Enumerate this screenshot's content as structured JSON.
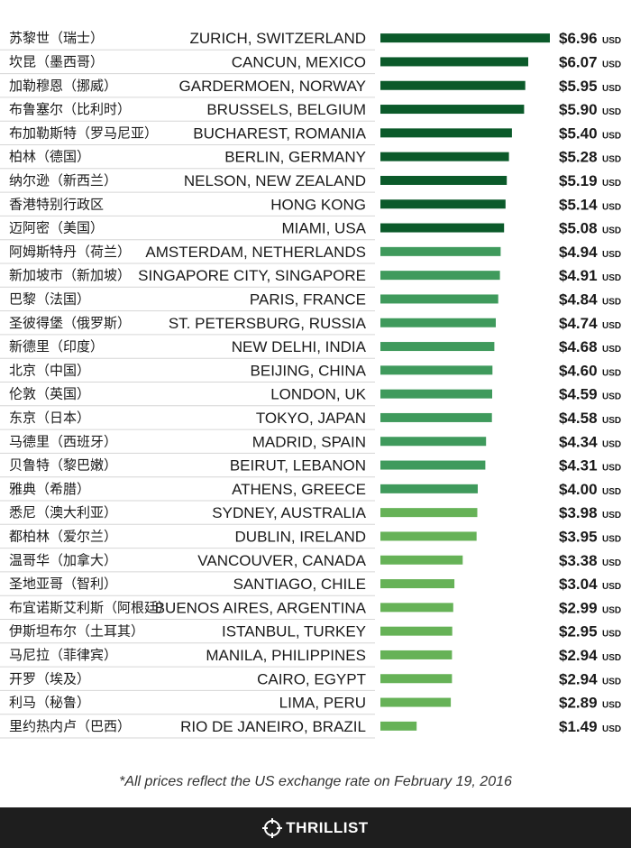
{
  "chart_data": {
    "type": "bar",
    "orientation": "horizontal",
    "unit": "USD",
    "currency_symbol": "$",
    "rows": [
      {
        "cn": "苏黎世（瑞士）",
        "city": "ZURICH, SWITZERLAND",
        "value": 6.96,
        "label": "$6.96"
      },
      {
        "cn": "坎昆（墨西哥）",
        "city": "CANCUN, MEXICO",
        "value": 6.07,
        "label": "$6.07"
      },
      {
        "cn": "加勒穆恩（挪威）",
        "city": "GARDERMOEN, NORWAY",
        "value": 5.95,
        "label": "$5.95"
      },
      {
        "cn": "布鲁塞尔（比利时）",
        "city": "BRUSSELS, BELGIUM",
        "value": 5.9,
        "label": "$5.90"
      },
      {
        "cn": "布加勒斯特（罗马尼亚）",
        "city": "BUCHAREST, ROMANIA",
        "value": 5.4,
        "label": "$5.40"
      },
      {
        "cn": "柏林（德国）",
        "city": "BERLIN, GERMANY",
        "value": 5.28,
        "label": "$5.28"
      },
      {
        "cn": "纳尔逊（新西兰）",
        "city": "NELSON, NEW ZEALAND",
        "value": 5.19,
        "label": "$5.19"
      },
      {
        "cn": "香港特别行政区",
        "city": "HONG KONG",
        "value": 5.14,
        "label": "$5.14"
      },
      {
        "cn": "迈阿密（美国）",
        "city": "MIAMI, USA",
        "value": 5.08,
        "label": "$5.08"
      },
      {
        "cn": "阿姆斯特丹（荷兰）",
        "city": "AMSTERDAM, NETHERLANDS",
        "value": 4.94,
        "label": "$4.94"
      },
      {
        "cn": "新加坡市（新加坡）",
        "city": "SINGAPORE CITY, SINGAPORE",
        "value": 4.91,
        "label": "$4.91"
      },
      {
        "cn": "巴黎（法国）",
        "city": "PARIS, FRANCE",
        "value": 4.84,
        "label": "$4.84"
      },
      {
        "cn": "圣彼得堡（俄罗斯）",
        "city": "ST. PETERSBURG, RUSSIA",
        "value": 4.74,
        "label": "$4.74"
      },
      {
        "cn": "新德里（印度）",
        "city": "NEW DELHI, INDIA",
        "value": 4.68,
        "label": "$4.68"
      },
      {
        "cn": "北京（中国）",
        "city": "BEIJING, CHINA",
        "value": 4.6,
        "label": "$4.60"
      },
      {
        "cn": "伦敦（英国）",
        "city": "LONDON, UK",
        "value": 4.59,
        "label": "$4.59"
      },
      {
        "cn": "东京（日本）",
        "city": "TOKYO, JAPAN",
        "value": 4.58,
        "label": "$4.58"
      },
      {
        "cn": "马德里（西班牙）",
        "city": "MADRID, SPAIN",
        "value": 4.34,
        "label": "$4.34"
      },
      {
        "cn": "贝鲁特（黎巴嫩）",
        "city": "BEIRUT, LEBANON",
        "value": 4.31,
        "label": "$4.31"
      },
      {
        "cn": "雅典（希腊）",
        "city": "ATHENS, GREECE",
        "value": 4.0,
        "label": "$4.00"
      },
      {
        "cn": "悉尼（澳大利亚）",
        "city": "SYDNEY, AUSTRALIA",
        "value": 3.98,
        "label": "$3.98"
      },
      {
        "cn": "都柏林（爱尔兰）",
        "city": "DUBLIN, IRELAND",
        "value": 3.95,
        "label": "$3.95"
      },
      {
        "cn": "温哥华（加拿大）",
        "city": "VANCOUVER, CANADA",
        "value": 3.38,
        "label": "$3.38"
      },
      {
        "cn": "圣地亚哥（智利）",
        "city": "SANTIAGO, CHILE",
        "value": 3.04,
        "label": "$3.04"
      },
      {
        "cn": "布宜诺斯艾利斯（阿根廷）",
        "city": "BUENOS AIRES, ARGENTINA",
        "value": 2.99,
        "label": "$2.99"
      },
      {
        "cn": "伊斯坦布尔（土耳其）",
        "city": "ISTANBUL, TURKEY",
        "value": 2.95,
        "label": "$2.95"
      },
      {
        "cn": "马尼拉（菲律宾）",
        "city": "MANILA, PHILIPPINES",
        "value": 2.94,
        "label": "$2.94"
      },
      {
        "cn": "开罗（埃及）",
        "city": "CAIRO, EGYPT",
        "value": 2.94,
        "label": "$2.94"
      },
      {
        "cn": "利马（秘鲁）",
        "city": "LIMA, PERU",
        "value": 2.89,
        "label": "$2.89"
      },
      {
        "cn": "里约热内卢（巴西）",
        "city": "RIO DE JANEIRO, BRAZIL",
        "value": 1.49,
        "label": "$1.49"
      }
    ],
    "colors": {
      "dark_green": "#0b5a2a",
      "mid_green": "#3f9a5c",
      "light_green": "#66b257"
    },
    "color_tiers": [
      {
        "min_value": 5.0,
        "color": "dark_green"
      },
      {
        "min_value": 4.0,
        "color": "mid_green"
      },
      {
        "min_value": 0,
        "color": "light_green"
      }
    ]
  },
  "footnote": "*All prices reflect the US exchange rate on February 19, 2016",
  "brand": {
    "name": "THRILLIST",
    "background": "#1e1e1e"
  }
}
